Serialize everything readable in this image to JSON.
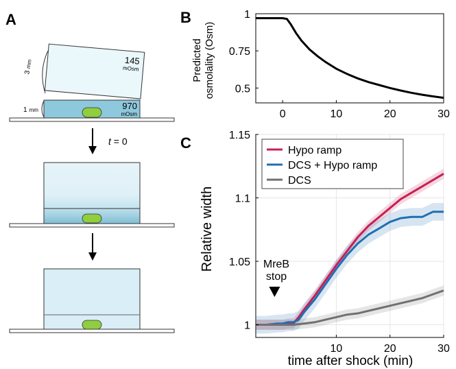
{
  "panels": {
    "a": {
      "letter": "A",
      "top_block_height": "3",
      "top_block_height_unit": "mm",
      "top_block_osm": "145",
      "top_block_osm_unit": "mOsm",
      "bottom_block_height": "1",
      "bottom_block_height_unit": "mm",
      "bottom_block_osm": "970",
      "bottom_block_osm_unit": "mOsm",
      "time_label_t": "t",
      "time_label_rest": " = 0",
      "colors": {
        "hypo_gel": "#eaf7fb",
        "hyper_gel": "#8ec8dd",
        "mixed_gel": "#d9eef6",
        "cell": "#8fce3e",
        "slide": "#ffffff"
      }
    },
    "b": {
      "letter": "B",
      "ylabel_line1": "Predicted",
      "ylabel_line2": "osmolality (Osm)",
      "chart_data": {
        "type": "line",
        "xlim": [
          -5,
          30
        ],
        "ylim": [
          0.4,
          1.0
        ],
        "xticks": [
          "0",
          "10",
          "20",
          "30"
        ],
        "yticks": [
          "0.5",
          "0.75",
          "1"
        ],
        "xlabel": "",
        "series": [
          {
            "color": "#000000",
            "x": [
              -5,
              0,
              0.8,
              1.5,
              2.5,
              3.5,
              5,
              6.5,
              8,
              10,
              12,
              14,
              16,
              18,
              20,
              22,
              24,
              26,
              28,
              30
            ],
            "y": [
              0.97,
              0.97,
              0.965,
              0.93,
              0.87,
              0.82,
              0.76,
              0.715,
              0.675,
              0.63,
              0.595,
              0.565,
              0.54,
              0.52,
              0.5,
              0.483,
              0.468,
              0.455,
              0.444,
              0.434
            ]
          }
        ]
      }
    },
    "c": {
      "letter": "C",
      "annotation_line1": "MreB",
      "annotation_line2": "stop",
      "annotation_x": -1.5,
      "chart_data": {
        "type": "line",
        "xlim": [
          -5,
          30
        ],
        "ylim": [
          0.99,
          1.15
        ],
        "xticks": [
          "10",
          "20",
          "30"
        ],
        "yticks": [
          "1",
          "1.05",
          "1.1",
          "1.15"
        ],
        "xlabel": "time after shock (min)",
        "ylabel": "Relative width",
        "legend_position": "top-left",
        "grid": true,
        "series": [
          {
            "name": "Hypo ramp",
            "color": "#c71f54",
            "x": [
              -5,
              -3,
              -1,
              0,
              1,
              2,
              3,
              4,
              6,
              8,
              10,
              12,
              14,
              16,
              18,
              20,
              22,
              24,
              26,
              28,
              30
            ],
            "y": [
              1.0,
              1.0,
              1.0,
              1.0,
              1.001,
              1.001,
              1.006,
              1.012,
              1.023,
              1.035,
              1.047,
              1.058,
              1.069,
              1.078,
              1.085,
              1.092,
              1.099,
              1.104,
              1.109,
              1.114,
              1.119
            ],
            "band": 0.004
          },
          {
            "name": "DCS + Hypo ramp",
            "color": "#1f6fb4",
            "x": [
              -5,
              -3,
              -1,
              0,
              1,
              2,
              3,
              4,
              6,
              8,
              10,
              12,
              14,
              16,
              18,
              20,
              22,
              24,
              26,
              28,
              30
            ],
            "y": [
              1.0,
              1.0,
              1.001,
              1.001,
              1.002,
              1.002,
              1.004,
              1.01,
              1.02,
              1.032,
              1.044,
              1.055,
              1.064,
              1.071,
              1.076,
              1.081,
              1.084,
              1.085,
              1.085,
              1.089,
              1.089
            ],
            "band": 0.007
          },
          {
            "name": "DCS",
            "color": "#707070",
            "x": [
              -5,
              -3,
              -1,
              0,
              1,
              2,
              4,
              6,
              8,
              10,
              12,
              14,
              16,
              18,
              20,
              22,
              24,
              26,
              28,
              30
            ],
            "y": [
              1.0,
              1.0,
              1.0,
              1.0,
              1.0,
              1.0,
              1.001,
              1.002,
              1.004,
              1.006,
              1.008,
              1.009,
              1.011,
              1.013,
              1.015,
              1.017,
              1.019,
              1.021,
              1.024,
              1.027
            ],
            "band": 0.004
          }
        ]
      }
    }
  }
}
